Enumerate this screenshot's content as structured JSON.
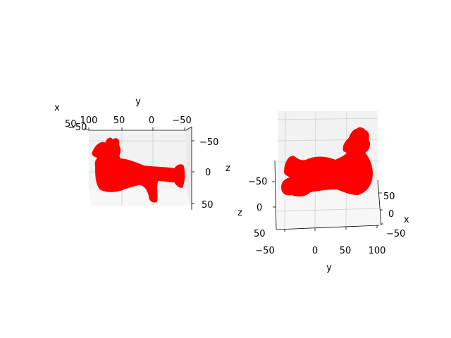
{
  "chart_data": [
    {
      "type": "scatter3d",
      "title": "",
      "marker_color": "#ff0000",
      "grid": true,
      "axes": {
        "x": {
          "label": "x",
          "ticks": [
            "50"
          ]
        },
        "y": {
          "label": "y",
          "ticks": [
            "100",
            "50",
            "0",
            "−50"
          ]
        },
        "z": {
          "label": "z",
          "ticks": [
            "−50",
            "0",
            "50"
          ]
        },
        "extra_ticks": [
          "−50"
        ]
      }
    },
    {
      "type": "scatter3d",
      "title": "",
      "marker_color": "#ff0000",
      "grid": true,
      "axes": {
        "x": {
          "label": "x",
          "ticks": [
            "50",
            "0",
            "−50"
          ]
        },
        "y": {
          "label": "y",
          "ticks": [
            "−50",
            "0",
            "50",
            "100"
          ]
        },
        "z": {
          "label": "z",
          "ticks": [
            "−50",
            "0",
            "50"
          ]
        }
      }
    }
  ]
}
